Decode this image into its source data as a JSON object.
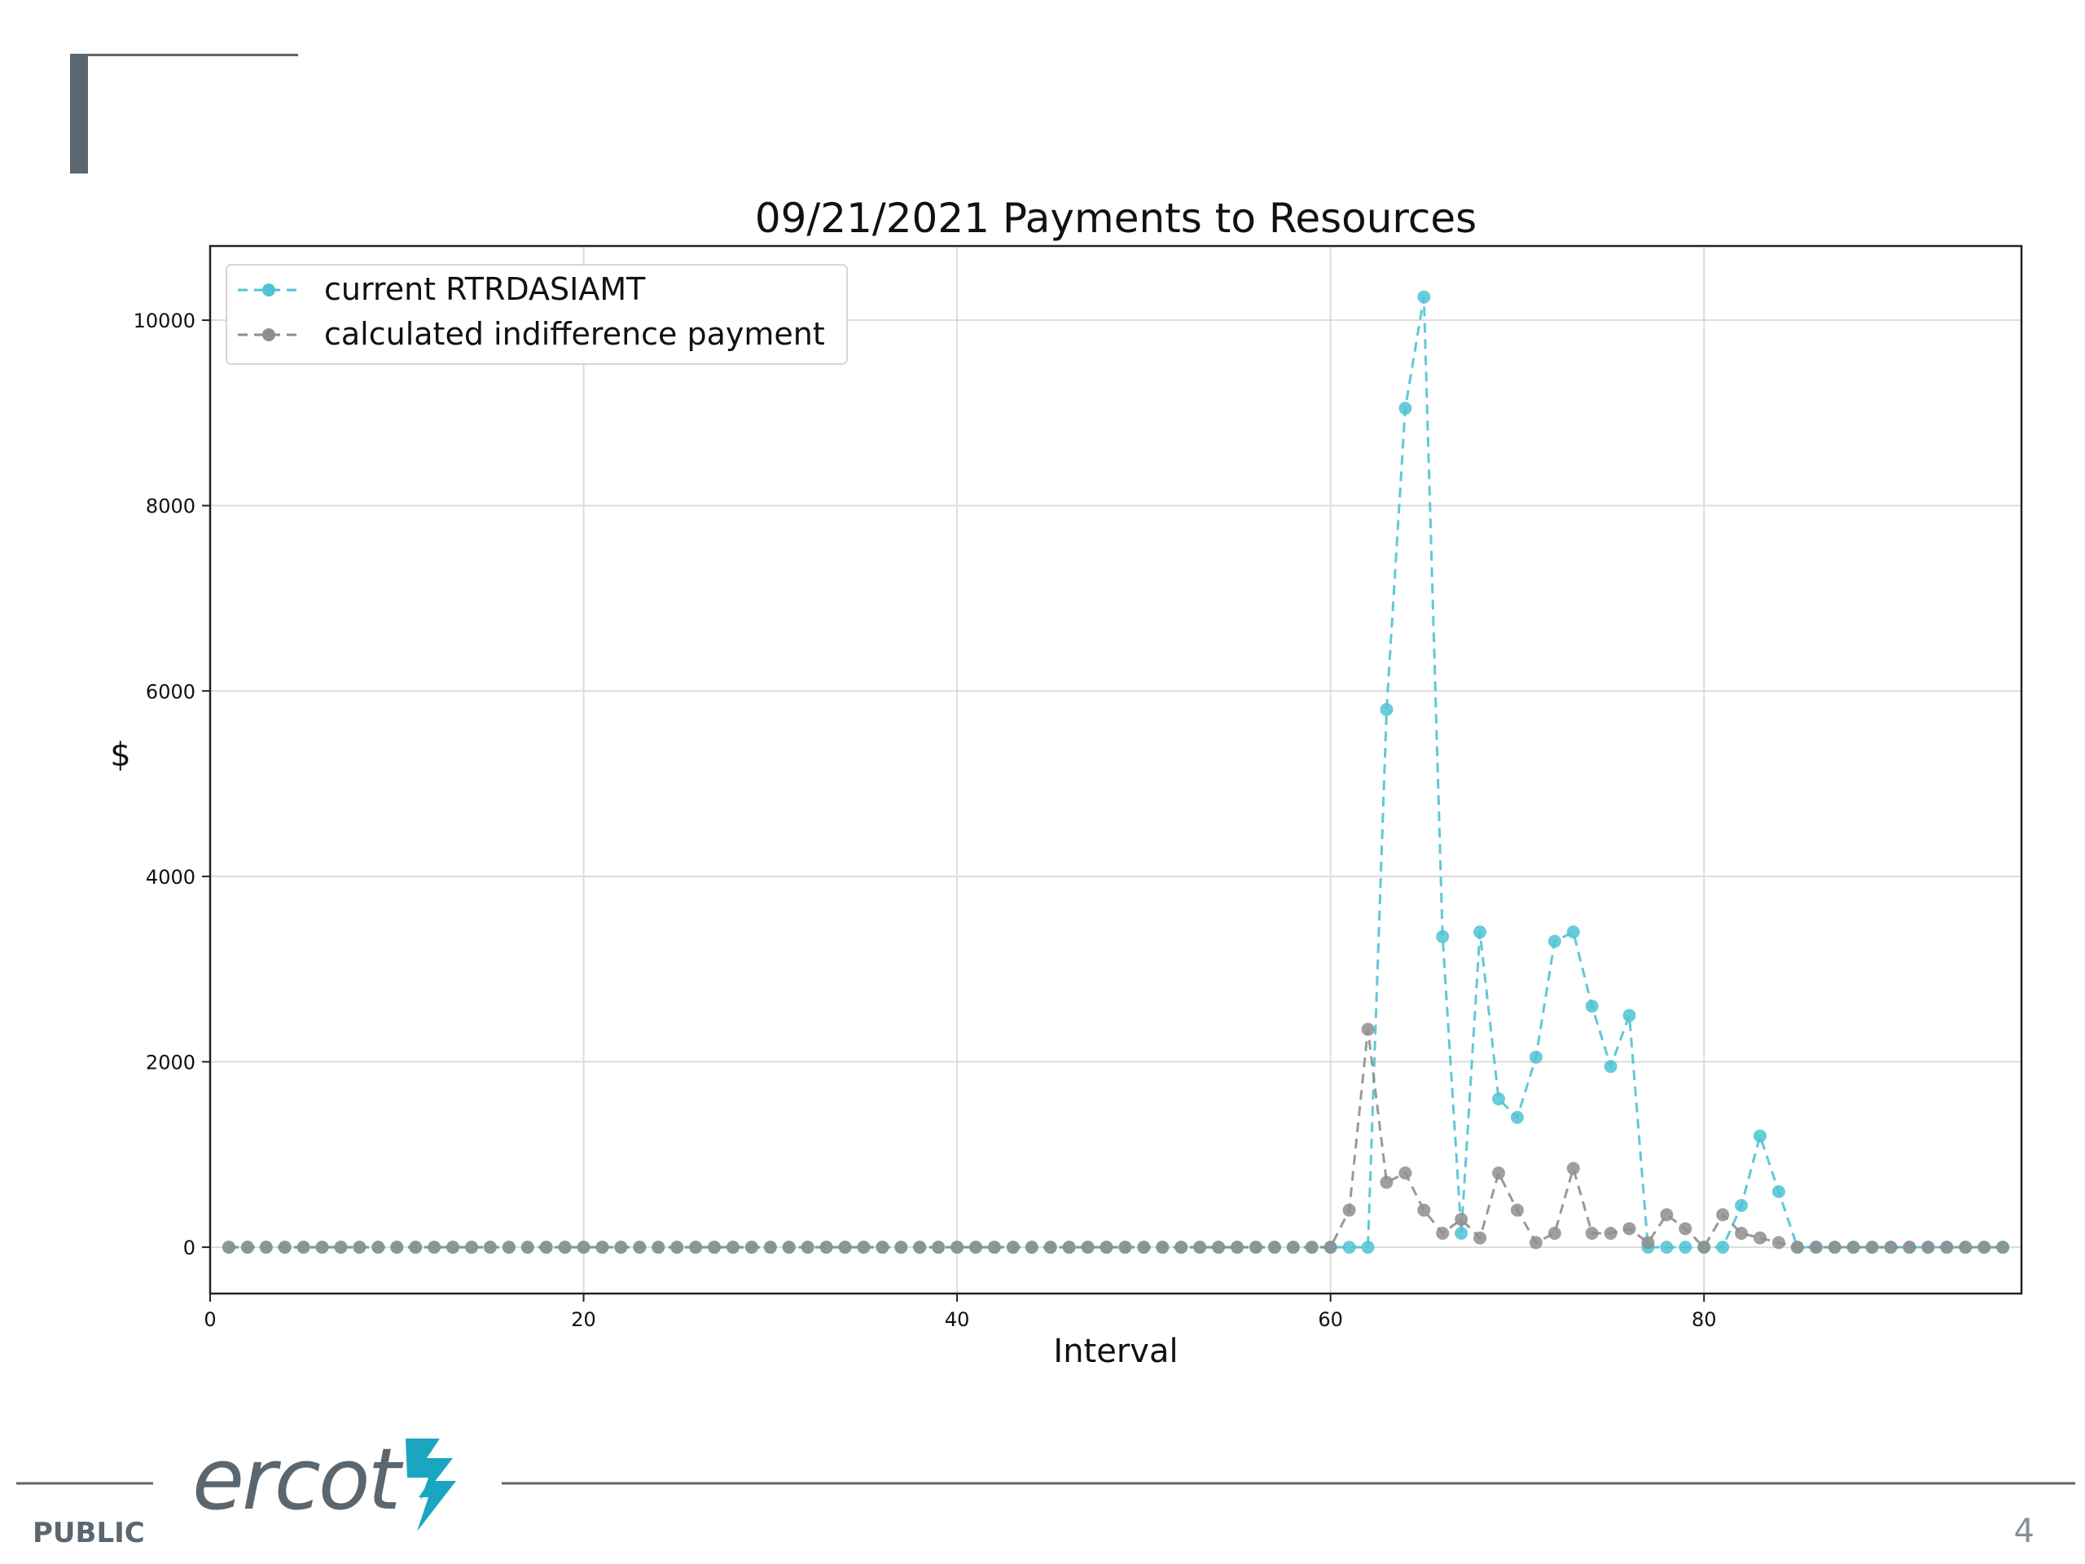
{
  "slide": {
    "footer_label": "PUBLIC",
    "page_number": "4",
    "logo_text": "ercot",
    "brand_color": "#1aa6c0",
    "accent_color": "#5a6670"
  },
  "chart_data": {
    "type": "line",
    "title": "09/21/2021 Payments to Resources",
    "xlabel": "Interval",
    "ylabel": "$",
    "xlim": [
      0,
      97
    ],
    "ylim": [
      -500,
      10800
    ],
    "xticks": [
      0,
      20,
      40,
      60,
      80
    ],
    "yticks": [
      0,
      2000,
      4000,
      6000,
      8000,
      10000
    ],
    "grid": true,
    "legend_position": "top-left",
    "x": [
      1,
      2,
      3,
      4,
      5,
      6,
      7,
      8,
      9,
      10,
      11,
      12,
      13,
      14,
      15,
      16,
      17,
      18,
      19,
      20,
      21,
      22,
      23,
      24,
      25,
      26,
      27,
      28,
      29,
      30,
      31,
      32,
      33,
      34,
      35,
      36,
      37,
      38,
      39,
      40,
      41,
      42,
      43,
      44,
      45,
      46,
      47,
      48,
      49,
      50,
      51,
      52,
      53,
      54,
      55,
      56,
      57,
      58,
      59,
      60,
      61,
      62,
      63,
      64,
      65,
      66,
      67,
      68,
      69,
      70,
      71,
      72,
      73,
      74,
      75,
      76,
      77,
      78,
      79,
      80,
      81,
      82,
      83,
      84,
      85,
      86,
      87,
      88,
      89,
      90,
      91,
      92,
      93,
      94,
      95,
      96
    ],
    "series": [
      {
        "name": "current RTRDASIAMT",
        "color": "#4ec3d3",
        "linestyle": "dashed",
        "marker": "circle",
        "values": [
          0,
          0,
          0,
          0,
          0,
          0,
          0,
          0,
          0,
          0,
          0,
          0,
          0,
          0,
          0,
          0,
          0,
          0,
          0,
          0,
          0,
          0,
          0,
          0,
          0,
          0,
          0,
          0,
          0,
          0,
          0,
          0,
          0,
          0,
          0,
          0,
          0,
          0,
          0,
          0,
          0,
          0,
          0,
          0,
          0,
          0,
          0,
          0,
          0,
          0,
          0,
          0,
          0,
          0,
          0,
          0,
          0,
          0,
          0,
          0,
          0,
          0,
          5800,
          9050,
          10250,
          3350,
          150,
          3400,
          1600,
          1400,
          2050,
          3300,
          3400,
          2600,
          1950,
          2500,
          0,
          0,
          0,
          0,
          0,
          450,
          1200,
          600,
          0,
          0,
          0,
          0,
          0,
          0,
          0,
          0,
          0,
          0,
          0,
          0
        ]
      },
      {
        "name": "calculated indifference payment",
        "color": "#8e8e8e",
        "linestyle": "dashed",
        "marker": "circle",
        "values": [
          0,
          0,
          0,
          0,
          0,
          0,
          0,
          0,
          0,
          0,
          0,
          0,
          0,
          0,
          0,
          0,
          0,
          0,
          0,
          0,
          0,
          0,
          0,
          0,
          0,
          0,
          0,
          0,
          0,
          0,
          0,
          0,
          0,
          0,
          0,
          0,
          0,
          0,
          0,
          0,
          0,
          0,
          0,
          0,
          0,
          0,
          0,
          0,
          0,
          0,
          0,
          0,
          0,
          0,
          0,
          0,
          0,
          0,
          0,
          0,
          400,
          2350,
          700,
          800,
          400,
          150,
          300,
          100,
          800,
          400,
          50,
          150,
          850,
          150,
          150,
          200,
          50,
          350,
          200,
          0,
          350,
          150,
          100,
          50,
          0,
          0,
          0,
          0,
          0,
          0,
          0,
          0,
          0,
          0,
          0,
          0
        ]
      }
    ]
  }
}
